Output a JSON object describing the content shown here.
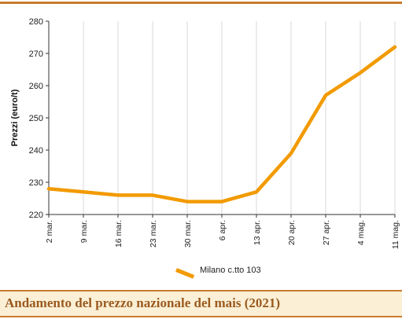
{
  "caption": "Andamento del prezzo nazionale del mais (2021)",
  "colors": {
    "line": "#f29a00",
    "accent": "#c87b2c",
    "caption_bg": "#fbf0d6",
    "caption_text": "#9a5a1f",
    "grid": "#d9d9d9"
  },
  "chart_data": {
    "type": "line",
    "categories": [
      "2 mar.",
      "9 mar.",
      "16 mar.",
      "23 mar.",
      "30 mar.",
      "6 apr.",
      "13 apr.",
      "20 apr.",
      "27 apr.",
      "4 mag.",
      "11 mag."
    ],
    "series": [
      {
        "name": "Milano  c.tto 103",
        "values": [
          228,
          227,
          226,
          226,
          224,
          224,
          227,
          239,
          257,
          264,
          272
        ]
      }
    ],
    "ylabel": "Prezzi (euro/t)",
    "xlabel": "",
    "ylim": [
      220,
      280
    ],
    "yticks": [
      "220",
      "230",
      "240",
      "250",
      "260",
      "270",
      "280"
    ],
    "grid": "vertical",
    "legend": "bottom-center"
  }
}
